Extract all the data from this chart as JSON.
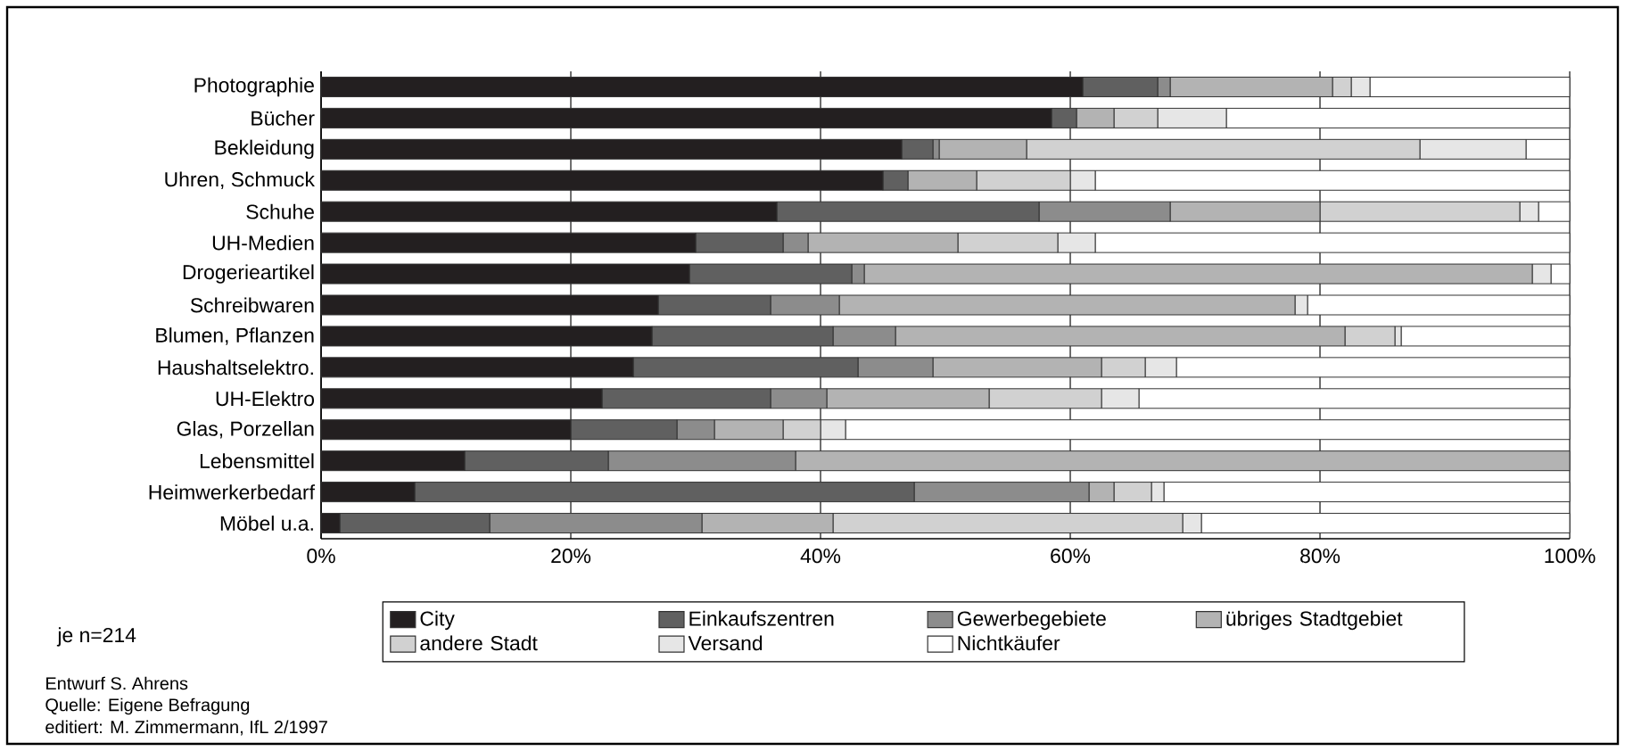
{
  "chart_data": {
    "type": "bar",
    "orientation": "horizontal",
    "stacked": true,
    "categories": [
      "Photographie",
      "Bücher",
      "Bekleidung",
      "Uhren, Schmuck",
      "Schuhe",
      "UH-Medien",
      "Drogerieartikel",
      "Schreibwaren",
      "Blumen, Pflanzen",
      "Haushaltselektro.",
      "UH-Elektro",
      "Glas, Porzellan",
      "Lebensmittel",
      "Heimwerkerbedarf",
      "Möbel u.a."
    ],
    "series": [
      {
        "name": "City",
        "color": "#231f20",
        "values": [
          61,
          58.5,
          46.5,
          45,
          36.5,
          30,
          29.5,
          27,
          26.5,
          25,
          22.5,
          20,
          11.5,
          7.5,
          1.5
        ]
      },
      {
        "name": "Einkaufszentren",
        "color": "#606060",
        "values": [
          6,
          2,
          2.5,
          2,
          21,
          7,
          13,
          9,
          14.5,
          18,
          13.5,
          8.5,
          11.5,
          40,
          12
        ]
      },
      {
        "name": "Gewerbegebiete",
        "color": "#8c8c8c",
        "values": [
          1,
          0,
          0.5,
          0,
          10.5,
          2,
          1,
          5.5,
          5,
          6,
          4.5,
          3,
          15,
          14,
          17
        ]
      },
      {
        "name": "übriges Stadtgebiet",
        "color": "#b3b3b3",
        "values": [
          13,
          3,
          7,
          5.5,
          12,
          12,
          53.5,
          36.5,
          36,
          13.5,
          13,
          5.5,
          62,
          2,
          10.5
        ]
      },
      {
        "name": "andere Stadt",
        "color": "#d1d1d1",
        "values": [
          1.5,
          3.5,
          31.5,
          7.5,
          16,
          8,
          0,
          0,
          4,
          3.5,
          9,
          3,
          0,
          3,
          28
        ]
      },
      {
        "name": "Versand",
        "color": "#e6e6e6",
        "values": [
          1.5,
          5.5,
          8.5,
          2,
          1.5,
          3,
          1.5,
          1,
          0.5,
          2.5,
          3,
          2,
          0,
          1,
          1.5
        ]
      },
      {
        "name": "Nichtkäufer",
        "color": "#ffffff",
        "values": [
          16,
          27.5,
          3.5,
          38,
          2.5,
          38,
          1.5,
          21,
          13.5,
          31.5,
          34.5,
          58,
          0,
          32.5,
          29.5
        ]
      }
    ],
    "xlim": [
      0,
      100
    ],
    "xticks": [
      {
        "value": 0,
        "label": "0%"
      },
      {
        "value": 20,
        "label": "20%"
      },
      {
        "value": 40,
        "label": "40%"
      },
      {
        "value": 60,
        "label": "60%"
      },
      {
        "value": 80,
        "label": "80%"
      },
      {
        "value": 100,
        "label": "100%"
      }
    ],
    "grid": "x",
    "legend": "bottom",
    "annotations": [
      "je n=214",
      "Entwurf S. Ahrens",
      "Quelle: Eigene Befragung",
      "editiert: M. Zimmermann, IfL 2/1997"
    ]
  }
}
